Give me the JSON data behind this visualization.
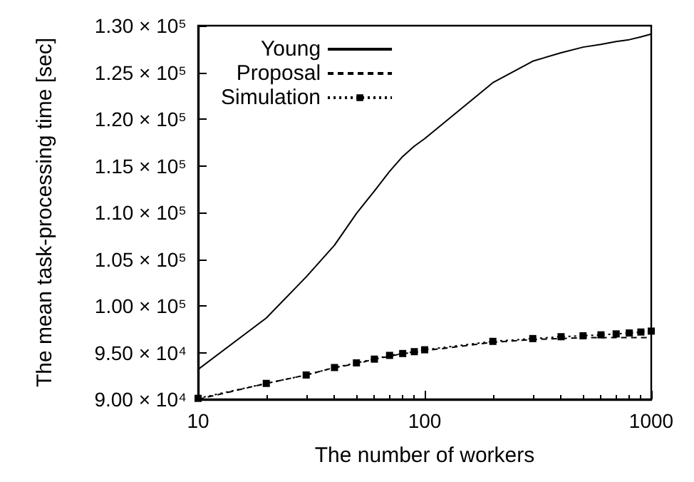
{
  "chart_data": {
    "type": "line",
    "xlabel": "The number of workers",
    "ylabel": "The mean task-processing time [sec]",
    "log": "x",
    "grid": false,
    "legend": "top left",
    "xlim": [
      10,
      1000
    ],
    "xticks": [
      10,
      100,
      1000
    ],
    "ylim": [
      90000,
      130000
    ],
    "yticks": [
      {
        "value": 90000,
        "label": "9.00 × 10⁴"
      },
      {
        "value": 95000,
        "label": "9.50 × 10⁴"
      },
      {
        "value": 100000,
        "label": "1.00 × 10⁵"
      },
      {
        "value": 105000,
        "label": "1.05 × 10⁵"
      },
      {
        "value": 110000,
        "label": "1.10 × 10⁵"
      },
      {
        "value": 115000,
        "label": "1.15 × 10⁵"
      },
      {
        "value": 120000,
        "label": "1.20 × 10⁵"
      },
      {
        "value": 125000,
        "label": "1.25 × 10⁵"
      },
      {
        "value": 130000,
        "label": "1.30 × 10⁵"
      }
    ],
    "series": [
      {
        "name": "Young",
        "color": "#000000",
        "line_style": "solid",
        "marker": "none",
        "x": [
          10,
          20,
          30,
          40,
          50,
          60,
          70,
          80,
          90,
          100,
          200,
          300,
          400,
          500,
          600,
          700,
          800,
          900,
          1000
        ],
        "values": [
          93200,
          98700,
          103100,
          106500,
          109900,
          112300,
          114400,
          116000,
          117100,
          117900,
          123900,
          126200,
          127100,
          127700,
          128000,
          128300,
          128500,
          128800,
          129100
        ]
      },
      {
        "name": "Proposal",
        "color": "#000000",
        "line_style": "dashed",
        "marker": "none",
        "x": [
          10,
          20,
          30,
          40,
          50,
          60,
          70,
          80,
          90,
          100,
          200,
          300,
          400,
          500,
          600,
          700,
          800,
          900,
          1000
        ],
        "values": [
          90000,
          91700,
          92600,
          93400,
          93800,
          94300,
          94600,
          94900,
          95000,
          95200,
          96100,
          96400,
          96500,
          96600,
          96600,
          96600,
          96600,
          96600,
          96600
        ]
      },
      {
        "name": "Simulation",
        "color": "#000000",
        "line_style": "dotted",
        "marker": "square",
        "x": [
          10,
          20,
          30,
          40,
          50,
          60,
          70,
          80,
          90,
          100,
          200,
          300,
          400,
          500,
          600,
          700,
          800,
          900,
          1000
        ],
        "values": [
          90100,
          91700,
          92600,
          93400,
          93900,
          94300,
          94700,
          94900,
          95100,
          95300,
          96200,
          96500,
          96700,
          96800,
          96900,
          97000,
          97100,
          97200,
          97300
        ]
      }
    ]
  }
}
